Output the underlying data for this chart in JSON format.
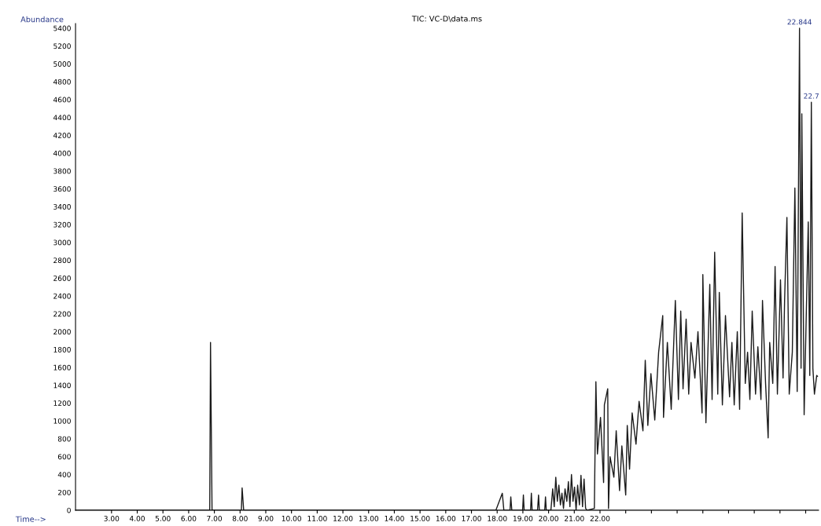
{
  "chart_data": {
    "type": "line",
    "title": "TIC: VC-D\\data.ms",
    "xlabel": "Time-->",
    "ylabel": "Abundance",
    "series": [
      {
        "color": "#1a1a1a",
        "x": [
          1.62,
          6.82,
          6.85,
          6.91,
          8.05,
          8.08,
          8.14,
          17.95,
          18.2,
          18.26,
          18.5,
          18.53,
          18.57,
          18.99,
          19.02,
          19.05,
          19.3,
          19.33,
          19.36,
          19.57,
          19.61,
          19.64,
          19.85,
          19.88,
          19.91,
          20.09,
          20.16,
          20.22,
          20.28,
          20.34,
          20.4,
          20.46,
          20.52,
          20.58,
          20.64,
          20.71,
          20.77,
          20.83,
          20.89,
          20.95,
          21.01,
          21.07,
          21.13,
          21.2,
          21.26,
          21.32,
          21.38,
          21.44,
          21.5,
          21.78,
          21.84,
          21.9,
          22.02,
          22.14,
          22.17,
          22.3,
          22.33,
          22.39,
          22.54,
          22.63,
          22.76,
          22.85,
          23.0,
          23.06,
          23.15,
          23.25,
          23.4,
          23.52,
          23.67,
          23.76,
          23.86,
          23.98,
          24.13,
          24.28,
          24.44,
          24.47,
          24.62,
          24.77,
          24.93,
          25.05,
          25.14,
          25.23,
          25.35,
          25.45,
          25.54,
          25.69,
          25.81,
          25.97,
          26.0,
          26.12,
          26.27,
          26.36,
          26.46,
          26.58,
          26.64,
          26.76,
          26.88,
          27.04,
          27.13,
          27.22,
          27.34,
          27.43,
          27.53,
          27.65,
          27.74,
          27.83,
          27.92,
          28.05,
          28.14,
          28.26,
          28.32,
          28.44,
          28.54,
          28.6,
          28.72,
          28.81,
          28.9,
          29.02,
          29.12,
          29.18,
          29.27,
          29.36,
          29.48,
          29.58,
          29.67,
          29.76,
          29.82,
          29.85,
          29.94,
          30.1,
          30.16,
          30.22,
          30.28,
          30.34,
          30.43,
          30.46
        ],
        "values": [
          0,
          0,
          1880,
          0,
          0,
          250,
          0,
          0,
          190,
          0,
          0,
          150,
          0,
          0,
          170,
          0,
          0,
          190,
          0,
          0,
          170,
          0,
          0,
          150,
          0,
          0,
          240,
          40,
          370,
          100,
          280,
          60,
          190,
          20,
          240,
          100,
          320,
          40,
          400,
          100,
          260,
          0,
          280,
          60,
          390,
          40,
          350,
          20,
          0,
          20,
          1440,
          630,
          1040,
          310,
          1180,
          1360,
          20,
          600,
          370,
          890,
          220,
          720,
          170,
          950,
          460,
          1090,
          740,
          1220,
          890,
          1680,
          950,
          1530,
          1010,
          1770,
          2180,
          1040,
          1880,
          1130,
          2350,
          1240,
          2230,
          1360,
          2140,
          1300,
          1880,
          1480,
          2000,
          1090,
          2640,
          980,
          2530,
          1240,
          2890,
          1300,
          2440,
          1180,
          2180,
          1270,
          1880,
          1180,
          2000,
          1130,
          3330,
          1420,
          1770,
          1240,
          2230,
          1300,
          1830,
          1240,
          2350,
          1420,
          810,
          1880,
          1420,
          2730,
          1300,
          2580,
          1480,
          2350,
          3280,
          1300,
          1770,
          3610,
          1330,
          5400,
          1590,
          4440,
          1070,
          3230,
          1510,
          4570,
          1590,
          1300,
          1510,
          1500
        ]
      }
    ],
    "xlim": [
      1.6,
      30.5
    ],
    "xticks": [
      {
        "value": 3,
        "label": "3.00"
      },
      {
        "value": 4,
        "label": "4.00"
      },
      {
        "value": 5,
        "label": "5.00"
      },
      {
        "value": 6,
        "label": "6.00"
      },
      {
        "value": 7,
        "label": "7.00"
      },
      {
        "value": 8,
        "label": "8.00"
      },
      {
        "value": 9,
        "label": "9.00"
      },
      {
        "value": 10,
        "label": "10.00"
      },
      {
        "value": 11,
        "label": "11.00"
      },
      {
        "value": 12,
        "label": "12.00"
      },
      {
        "value": 13,
        "label": "13.00"
      },
      {
        "value": 14,
        "label": "14.00"
      },
      {
        "value": 15,
        "label": "15.00"
      },
      {
        "value": 16,
        "label": "16.00"
      },
      {
        "value": 17,
        "label": "17.00"
      },
      {
        "value": 18,
        "label": "18.00"
      },
      {
        "value": 19,
        "label": "19.00"
      },
      {
        "value": 20,
        "label": "20.00"
      },
      {
        "value": 21,
        "label": "21.00"
      },
      {
        "value": 22,
        "label": "22.00"
      },
      {
        "value": 23,
        "label": null
      },
      {
        "value": 24,
        "label": null
      },
      {
        "value": 25,
        "label": null
      },
      {
        "value": 26,
        "label": null
      },
      {
        "value": 27,
        "label": null
      },
      {
        "value": 28,
        "label": null
      },
      {
        "value": 29,
        "label": null
      },
      {
        "value": 30,
        "label": null
      }
    ],
    "ylim": [
      0,
      5450
    ],
    "yticks": [
      0,
      200,
      400,
      600,
      800,
      1000,
      1200,
      1400,
      1600,
      1800,
      2000,
      2200,
      2400,
      2600,
      2800,
      3000,
      3200,
      3400,
      3600,
      3800,
      4000,
      4200,
      4400,
      4600,
      4800,
      5000,
      5200,
      5400
    ],
    "annotations": [
      {
        "text": "22.844",
        "x": 29.76,
        "y": 5400
      },
      {
        "text": "22.7",
        "x": 30.22,
        "y": 4570
      }
    ],
    "grid": false,
    "marker": "none",
    "line_style": "solid"
  }
}
